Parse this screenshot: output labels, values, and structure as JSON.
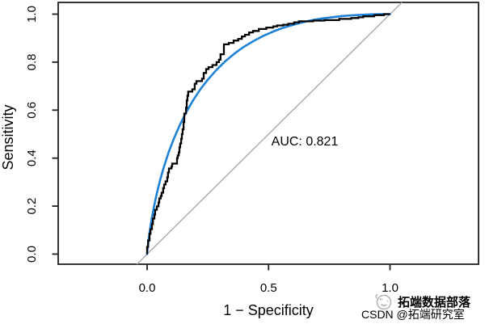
{
  "annotation": {
    "auc_label": "AUC: 0.821"
  },
  "watermark": {
    "line1": "拓端数据部落",
    "line2": "CSDN @拓端研究室",
    "logo": "smiley-face-logo",
    "color": "#b6b6b6"
  },
  "colors": {
    "empirical_curve": "#000000",
    "smooth_curve": "#1e82d7",
    "diagonal": "#aaaaaa",
    "box": "#1f1f1f",
    "text": "#000000",
    "background": "#ffffff"
  },
  "chart_data": {
    "type": "line",
    "title": "",
    "xlabel": "1 − Specificity",
    "ylabel": "Sensitivity",
    "xlim": [
      0,
      1
    ],
    "ylim": [
      0,
      1
    ],
    "grid": false,
    "legend": "none",
    "annotation": "AUC: 0.821",
    "auc": 0.821,
    "x_ticks": [
      {
        "v": 0.0,
        "label": "0.0"
      },
      {
        "v": 0.5,
        "label": "0.5"
      },
      {
        "v": 1.0,
        "label": "1.0"
      }
    ],
    "y_ticks": [
      {
        "v": 0.0,
        "label": "0.0"
      },
      {
        "v": 0.2,
        "label": "0.2"
      },
      {
        "v": 0.4,
        "label": "0.4"
      },
      {
        "v": 0.6,
        "label": "0.6"
      },
      {
        "v": 0.8,
        "label": "0.8"
      },
      {
        "v": 1.0,
        "label": "1.0"
      }
    ],
    "series": [
      {
        "name": "empirical-roc",
        "style": "step",
        "color": "#000000",
        "points": [
          [
            0.0,
            0.0
          ],
          [
            0.0,
            0.03
          ],
          [
            0.004,
            0.03
          ],
          [
            0.004,
            0.057
          ],
          [
            0.01,
            0.057
          ],
          [
            0.01,
            0.085
          ],
          [
            0.014,
            0.085
          ],
          [
            0.014,
            0.104
          ],
          [
            0.02,
            0.104
          ],
          [
            0.02,
            0.125
          ],
          [
            0.024,
            0.125
          ],
          [
            0.024,
            0.148
          ],
          [
            0.03,
            0.148
          ],
          [
            0.03,
            0.165
          ],
          [
            0.033,
            0.165
          ],
          [
            0.033,
            0.185
          ],
          [
            0.04,
            0.185
          ],
          [
            0.04,
            0.199
          ],
          [
            0.047,
            0.199
          ],
          [
            0.047,
            0.215
          ],
          [
            0.05,
            0.215
          ],
          [
            0.05,
            0.232
          ],
          [
            0.056,
            0.232
          ],
          [
            0.056,
            0.242
          ],
          [
            0.06,
            0.242
          ],
          [
            0.06,
            0.256
          ],
          [
            0.066,
            0.256
          ],
          [
            0.066,
            0.275
          ],
          [
            0.07,
            0.275
          ],
          [
            0.07,
            0.29
          ],
          [
            0.076,
            0.29
          ],
          [
            0.076,
            0.303
          ],
          [
            0.083,
            0.303
          ],
          [
            0.083,
            0.32
          ],
          [
            0.086,
            0.32
          ],
          [
            0.086,
            0.34
          ],
          [
            0.09,
            0.34
          ],
          [
            0.09,
            0.357
          ],
          [
            0.1,
            0.357
          ],
          [
            0.1,
            0.365
          ],
          [
            0.103,
            0.365
          ],
          [
            0.103,
            0.377
          ],
          [
            0.123,
            0.377
          ],
          [
            0.123,
            0.4
          ],
          [
            0.126,
            0.4
          ],
          [
            0.126,
            0.411
          ],
          [
            0.13,
            0.411
          ],
          [
            0.13,
            0.424
          ],
          [
            0.133,
            0.424
          ],
          [
            0.133,
            0.445
          ],
          [
            0.136,
            0.445
          ],
          [
            0.136,
            0.461
          ],
          [
            0.14,
            0.461
          ],
          [
            0.14,
            0.48
          ],
          [
            0.143,
            0.48
          ],
          [
            0.143,
            0.5
          ],
          [
            0.146,
            0.5
          ],
          [
            0.146,
            0.52
          ],
          [
            0.15,
            0.52
          ],
          [
            0.15,
            0.55
          ],
          [
            0.153,
            0.55
          ],
          [
            0.153,
            0.586
          ],
          [
            0.16,
            0.586
          ],
          [
            0.16,
            0.61
          ],
          [
            0.163,
            0.61
          ],
          [
            0.163,
            0.64
          ],
          [
            0.166,
            0.64
          ],
          [
            0.166,
            0.66
          ],
          [
            0.169,
            0.66
          ],
          [
            0.169,
            0.677
          ],
          [
            0.186,
            0.677
          ],
          [
            0.186,
            0.687
          ],
          [
            0.196,
            0.687
          ],
          [
            0.196,
            0.71
          ],
          [
            0.203,
            0.71
          ],
          [
            0.203,
            0.721
          ],
          [
            0.226,
            0.721
          ],
          [
            0.226,
            0.731
          ],
          [
            0.233,
            0.731
          ],
          [
            0.233,
            0.755
          ],
          [
            0.243,
            0.755
          ],
          [
            0.243,
            0.771
          ],
          [
            0.253,
            0.771
          ],
          [
            0.253,
            0.779
          ],
          [
            0.269,
            0.779
          ],
          [
            0.269,
            0.788
          ],
          [
            0.286,
            0.788
          ],
          [
            0.286,
            0.8
          ],
          [
            0.296,
            0.8
          ],
          [
            0.296,
            0.81
          ],
          [
            0.302,
            0.81
          ],
          [
            0.302,
            0.833
          ],
          [
            0.316,
            0.833
          ],
          [
            0.316,
            0.874
          ],
          [
            0.336,
            0.874
          ],
          [
            0.336,
            0.88
          ],
          [
            0.356,
            0.88
          ],
          [
            0.356,
            0.89
          ],
          [
            0.375,
            0.89
          ],
          [
            0.375,
            0.897
          ],
          [
            0.39,
            0.897
          ],
          [
            0.39,
            0.907
          ],
          [
            0.403,
            0.907
          ],
          [
            0.403,
            0.914
          ],
          [
            0.42,
            0.914
          ],
          [
            0.42,
            0.924
          ],
          [
            0.436,
            0.924
          ],
          [
            0.436,
            0.93
          ],
          [
            0.46,
            0.93
          ],
          [
            0.46,
            0.938
          ],
          [
            0.491,
            0.938
          ],
          [
            0.491,
            0.944
          ],
          [
            0.519,
            0.944
          ],
          [
            0.519,
            0.949
          ],
          [
            0.535,
            0.949
          ],
          [
            0.535,
            0.953
          ],
          [
            0.56,
            0.953
          ],
          [
            0.56,
            0.956
          ],
          [
            0.581,
            0.956
          ],
          [
            0.581,
            0.96
          ],
          [
            0.605,
            0.96
          ],
          [
            0.605,
            0.966
          ],
          [
            0.625,
            0.966
          ],
          [
            0.625,
            0.97
          ],
          [
            0.684,
            0.97
          ],
          [
            0.684,
            0.973
          ],
          [
            0.73,
            0.973
          ],
          [
            0.73,
            0.975
          ],
          [
            0.791,
            0.975
          ],
          [
            0.791,
            0.98
          ],
          [
            0.84,
            0.98
          ],
          [
            0.84,
            0.984
          ],
          [
            0.87,
            0.984
          ],
          [
            0.87,
            0.987
          ],
          [
            0.89,
            0.987
          ],
          [
            0.89,
            0.991
          ],
          [
            0.935,
            0.991
          ],
          [
            0.935,
            0.996
          ],
          [
            0.975,
            0.996
          ],
          [
            0.975,
            1.0
          ],
          [
            1.0,
            1.0
          ]
        ]
      },
      {
        "name": "smooth-roc",
        "style": "smooth",
        "color": "#1e82d7",
        "points": [
          [
            0.0,
            0.0
          ],
          [
            0.001,
            0.012
          ],
          [
            0.003,
            0.033
          ],
          [
            0.006,
            0.059
          ],
          [
            0.01,
            0.089
          ],
          [
            0.015,
            0.123
          ],
          [
            0.02,
            0.153
          ],
          [
            0.03,
            0.206
          ],
          [
            0.04,
            0.253
          ],
          [
            0.055,
            0.314
          ],
          [
            0.07,
            0.366
          ],
          [
            0.09,
            0.428
          ],
          [
            0.11,
            0.481
          ],
          [
            0.135,
            0.539
          ],
          [
            0.16,
            0.59
          ],
          [
            0.19,
            0.642
          ],
          [
            0.22,
            0.688
          ],
          [
            0.25,
            0.727
          ],
          [
            0.285,
            0.767
          ],
          [
            0.32,
            0.802
          ],
          [
            0.36,
            0.836
          ],
          [
            0.4,
            0.865
          ],
          [
            0.44,
            0.889
          ],
          [
            0.48,
            0.91
          ],
          [
            0.52,
            0.928
          ],
          [
            0.56,
            0.943
          ],
          [
            0.6,
            0.955
          ],
          [
            0.64,
            0.966
          ],
          [
            0.68,
            0.975
          ],
          [
            0.72,
            0.982
          ],
          [
            0.76,
            0.987
          ],
          [
            0.8,
            0.992
          ],
          [
            0.84,
            0.995
          ],
          [
            0.88,
            0.997
          ],
          [
            0.92,
            0.999
          ],
          [
            0.96,
            1.0
          ],
          [
            1.0,
            1.0
          ]
        ]
      },
      {
        "name": "chance-diagonal",
        "style": "line",
        "color": "#aaaaaa",
        "points": [
          [
            0.0,
            0.0
          ],
          [
            1.0,
            1.0
          ]
        ]
      }
    ]
  }
}
